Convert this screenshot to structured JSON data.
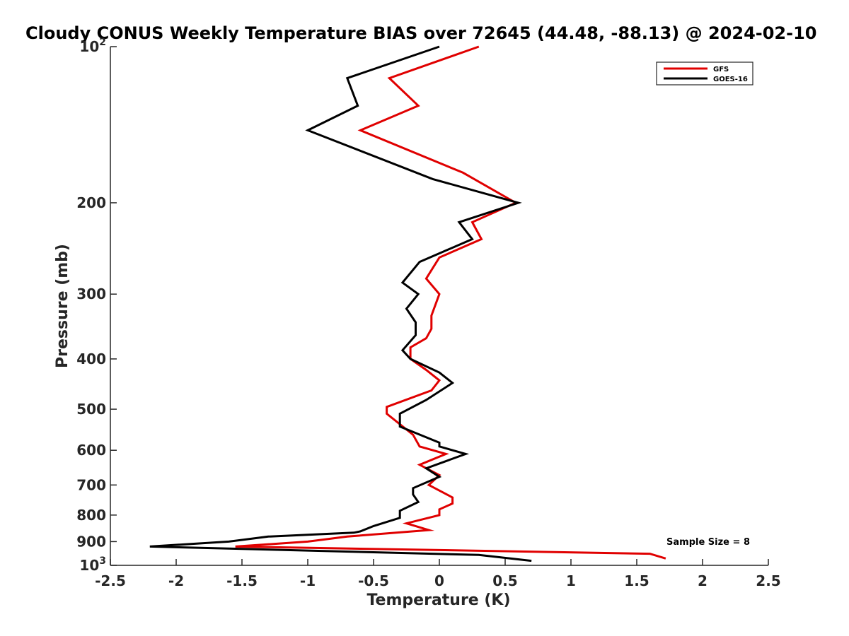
{
  "chart_data": {
    "type": "line",
    "title": "Cloudy CONUS Weekly Temperature BIAS over 72645 (44.48, -88.13) @ 2024-02-10",
    "xlabel": "Temperature (K)",
    "ylabel": "Pressure (mb)",
    "xlim": [
      -2.5,
      2.5
    ],
    "ylim": [
      100,
      1000
    ],
    "y_scale": "log",
    "y_reversed": true,
    "x_ticks": [
      "-2.5",
      "-2",
      "-1.5",
      "-1",
      "-0.5",
      "0",
      "0.5",
      "1",
      "1.5",
      "2",
      "2.5"
    ],
    "y_ticks": [
      {
        "value": 100,
        "base": "10",
        "exp": "2"
      },
      {
        "value": 200,
        "label": "200"
      },
      {
        "value": 300,
        "label": "300"
      },
      {
        "value": 400,
        "label": "400"
      },
      {
        "value": 500,
        "label": "500"
      },
      {
        "value": 600,
        "label": "600"
      },
      {
        "value": 700,
        "label": "700"
      },
      {
        "value": 800,
        "label": "800"
      },
      {
        "value": 900,
        "label": "900"
      },
      {
        "value": 1000,
        "base": "10",
        "exp": "3"
      }
    ],
    "grid": false,
    "legend_position": "top-right",
    "series": [
      {
        "name": "GFS",
        "color": "#e00000",
        "points": [
          [
            0.3,
            100
          ],
          [
            -0.38,
            115
          ],
          [
            -0.16,
            130
          ],
          [
            -0.6,
            145
          ],
          [
            0.18,
            175
          ],
          [
            0.58,
            200
          ],
          [
            0.25,
            218
          ],
          [
            0.32,
            235
          ],
          [
            0.0,
            255
          ],
          [
            -0.1,
            280
          ],
          [
            0.0,
            300
          ],
          [
            -0.06,
            330
          ],
          [
            -0.06,
            350
          ],
          [
            -0.1,
            365
          ],
          [
            -0.22,
            380
          ],
          [
            -0.22,
            400
          ],
          [
            -0.1,
            420
          ],
          [
            0.0,
            440
          ],
          [
            -0.06,
            460
          ],
          [
            -0.4,
            495
          ],
          [
            -0.4,
            510
          ],
          [
            -0.2,
            560
          ],
          [
            -0.15,
            590
          ],
          [
            0.05,
            610
          ],
          [
            -0.15,
            640
          ],
          [
            0.0,
            670
          ],
          [
            -0.08,
            700
          ],
          [
            0.1,
            740
          ],
          [
            0.1,
            760
          ],
          [
            0.0,
            780
          ],
          [
            0.0,
            800
          ],
          [
            -0.25,
            830
          ],
          [
            -0.08,
            855
          ],
          [
            -0.7,
            880
          ],
          [
            -1.0,
            900
          ],
          [
            -1.55,
            920
          ],
          [
            1.6,
            950
          ],
          [
            1.72,
            970
          ]
        ]
      },
      {
        "name": "GOES-16",
        "color": "#000000",
        "points": [
          [
            0.0,
            100
          ],
          [
            -0.7,
            115
          ],
          [
            -0.62,
            130
          ],
          [
            -1.0,
            145
          ],
          [
            -0.05,
            180
          ],
          [
            0.6,
            200
          ],
          [
            0.15,
            218
          ],
          [
            0.25,
            235
          ],
          [
            -0.15,
            260
          ],
          [
            -0.28,
            285
          ],
          [
            -0.16,
            300
          ],
          [
            -0.25,
            320
          ],
          [
            -0.18,
            340
          ],
          [
            -0.18,
            360
          ],
          [
            -0.28,
            385
          ],
          [
            -0.22,
            400
          ],
          [
            0.0,
            425
          ],
          [
            0.1,
            445
          ],
          [
            -0.1,
            480
          ],
          [
            -0.3,
            510
          ],
          [
            -0.3,
            540
          ],
          [
            0.0,
            580
          ],
          [
            0.0,
            590
          ],
          [
            0.2,
            610
          ],
          [
            -0.1,
            650
          ],
          [
            0.0,
            675
          ],
          [
            -0.2,
            710
          ],
          [
            -0.2,
            730
          ],
          [
            -0.16,
            755
          ],
          [
            -0.3,
            785
          ],
          [
            -0.3,
            810
          ],
          [
            -0.5,
            840
          ],
          [
            -0.6,
            860
          ],
          [
            -0.65,
            865
          ],
          [
            -1.3,
            880
          ],
          [
            -1.6,
            900
          ],
          [
            -2.2,
            920
          ],
          [
            0.3,
            955
          ],
          [
            0.7,
            980
          ]
        ]
      }
    ],
    "annotation": "Sample Size = 8"
  }
}
